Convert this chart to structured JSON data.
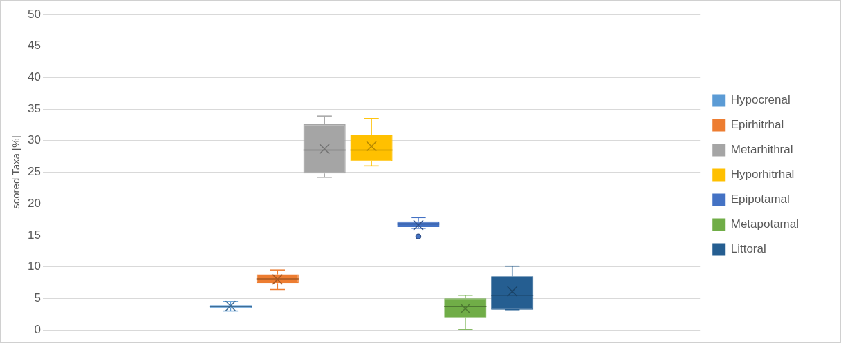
{
  "chart_data": {
    "type": "box",
    "ylabel": "scored Taxa [%]",
    "categories": [
      null
    ],
    "ylim": [
      0,
      50
    ],
    "yticks": [
      0,
      5,
      10,
      15,
      20,
      25,
      30,
      35,
      40,
      45,
      50
    ],
    "grid": "y",
    "legend": "right",
    "tick_labels": "y",
    "series": [
      {
        "name": "Hypocrenal",
        "color": "#5b9bd5",
        "boxes": [
          {
            "low": 3.0,
            "q1": 3.4,
            "median": 3.7,
            "q3": 3.9,
            "high": 4.5,
            "mean": 3.8
          }
        ]
      },
      {
        "name": "Epirhitrhal",
        "color": "#ed7d31",
        "boxes": [
          {
            "low": 6.4,
            "q1": 7.4,
            "median": 8.1,
            "q3": 8.8,
            "high": 9.5,
            "mean": 8.0
          }
        ]
      },
      {
        "name": "Metarhithral",
        "color": "#a5a5a5",
        "boxes": [
          {
            "low": 24.2,
            "q1": 24.8,
            "median": 28.5,
            "q3": 32.6,
            "high": 33.9,
            "mean": 28.7
          }
        ]
      },
      {
        "name": "Hyporhitrhal",
        "color": "#ffc000",
        "boxes": [
          {
            "low": 26.0,
            "q1": 26.7,
            "median": 28.5,
            "q3": 30.9,
            "high": 33.5,
            "mean": 29.1
          }
        ]
      },
      {
        "name": "Epipotamal",
        "color": "#4472c4",
        "boxes": [
          {
            "low": 16.1,
            "q1": 16.3,
            "median": 16.8,
            "q3": 17.2,
            "high": 17.8,
            "mean": 16.6,
            "outliers": [
              14.8
            ]
          }
        ]
      },
      {
        "name": "Metapotamal",
        "color": "#70ad47",
        "boxes": [
          {
            "low": 0.1,
            "q1": 1.9,
            "median": 3.7,
            "q3": 5.0,
            "high": 5.5,
            "mean": 3.4
          }
        ]
      },
      {
        "name": "Littoral",
        "color": "#255e91",
        "boxes": [
          {
            "low": 3.2,
            "q1": 3.2,
            "median": 5.5,
            "q3": 8.5,
            "high": 10.1,
            "mean": 6.1
          }
        ]
      }
    ]
  }
}
